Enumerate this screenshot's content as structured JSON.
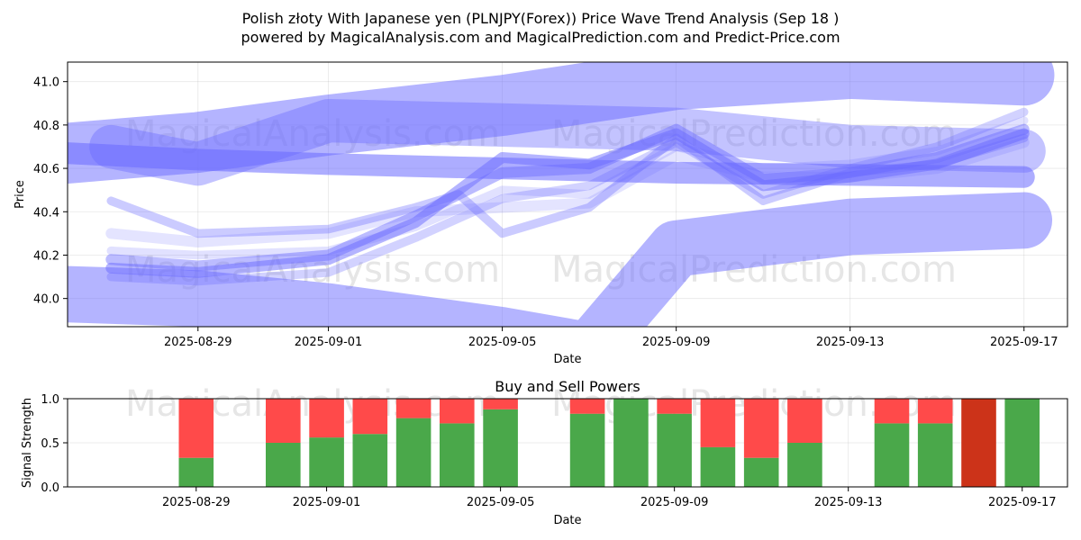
{
  "title_line1": "Polish złoty With Japanese yen (PLNJPY(Forex)) Price Wave Trend Analysis (Sep 18 )",
  "title_line2": "powered by MagicalAnalysis.com and MagicalPrediction.com and Predict-Price.com",
  "watermarks": {
    "left": "MagicalAnalysis.com",
    "right": "MagicalPrediction.com"
  },
  "colors": {
    "band": "#6a6aff",
    "buy": "#4aa84a",
    "sell": "#ff4a4a",
    "sell_dark": "#cc3319"
  },
  "chart_data": [
    {
      "type": "area",
      "title": "",
      "xlabel": "Date",
      "ylabel": "Price",
      "x_ticks": [
        "2025-08-29",
        "2025-09-01",
        "2025-09-05",
        "2025-09-09",
        "2025-09-13",
        "2025-09-17"
      ],
      "y_ticks": [
        "40.0",
        "40.2",
        "40.4",
        "40.6",
        "40.8",
        "41.0"
      ],
      "xlim": [
        "2025-08-26",
        "2025-09-18"
      ],
      "ylim": [
        39.87,
        41.09
      ],
      "grid": true,
      "series": [
        {
          "x": [
            "2025-08-26",
            "2025-08-29",
            "2025-09-01",
            "2025-09-05",
            "2025-09-09",
            "2025-09-13",
            "2025-09-17"
          ],
          "y": [
            40.67,
            40.64,
            40.62,
            40.6,
            40.58,
            40.57,
            40.56
          ],
          "width": 0.1,
          "opacity": 0.55
        },
        {
          "x": [
            "2025-08-26",
            "2025-08-29",
            "2025-09-01",
            "2025-09-05",
            "2025-09-09",
            "2025-09-13",
            "2025-09-17"
          ],
          "y": [
            40.67,
            40.72,
            40.8,
            40.89,
            41.01,
            41.06,
            41.03
          ],
          "width": 0.28,
          "opacity": 0.5
        },
        {
          "x": [
            "2025-08-26",
            "2025-08-29",
            "2025-09-01",
            "2025-09-05",
            "2025-09-07",
            "2025-09-09",
            "2025-09-13",
            "2025-09-17"
          ],
          "y": [
            40.02,
            40.0,
            39.94,
            39.83,
            39.76,
            40.23,
            40.33,
            40.36
          ],
          "width": 0.26,
          "opacity": 0.5
        },
        {
          "x": [
            "2025-08-27",
            "2025-08-29",
            "2025-09-01",
            "2025-09-05",
            "2025-09-09",
            "2025-09-13",
            "2025-09-17"
          ],
          "y": [
            40.7,
            40.62,
            40.82,
            40.8,
            40.78,
            40.7,
            40.68
          ],
          "width": 0.2,
          "opacity": 0.4
        },
        {
          "x": [
            "2025-08-27",
            "2025-08-29",
            "2025-09-01",
            "2025-09-03",
            "2025-09-05",
            "2025-09-07",
            "2025-09-09",
            "2025-09-11",
            "2025-09-13",
            "2025-09-15",
            "2025-09-17"
          ],
          "y": [
            40.14,
            40.12,
            40.18,
            40.35,
            40.65,
            40.62,
            40.76,
            40.52,
            40.56,
            40.62,
            40.76
          ],
          "width": 0.05,
          "opacity": 0.5
        },
        {
          "x": [
            "2025-08-27",
            "2025-08-29",
            "2025-09-01",
            "2025-09-03",
            "2025-09-05",
            "2025-09-07",
            "2025-09-09",
            "2025-09-11",
            "2025-09-13",
            "2025-09-15",
            "2025-09-17"
          ],
          "y": [
            40.18,
            40.15,
            40.2,
            40.38,
            40.58,
            40.6,
            40.78,
            40.55,
            40.58,
            40.65,
            40.78
          ],
          "width": 0.05,
          "opacity": 0.45
        },
        {
          "x": [
            "2025-08-27",
            "2025-08-29",
            "2025-09-01",
            "2025-09-03",
            "2025-09-04",
            "2025-09-05",
            "2025-09-07",
            "2025-09-09",
            "2025-09-11",
            "2025-09-13",
            "2025-09-15",
            "2025-09-17"
          ],
          "y": [
            40.45,
            40.3,
            40.32,
            40.42,
            40.48,
            40.3,
            40.42,
            40.74,
            40.45,
            40.58,
            40.62,
            40.74
          ],
          "width": 0.04,
          "opacity": 0.35
        },
        {
          "x": [
            "2025-08-27",
            "2025-08-29",
            "2025-09-01",
            "2025-09-03",
            "2025-09-05",
            "2025-09-07",
            "2025-09-09",
            "2025-09-11",
            "2025-09-13",
            "2025-09-15",
            "2025-09-17"
          ],
          "y": [
            40.1,
            40.08,
            40.12,
            40.28,
            40.46,
            40.52,
            40.72,
            40.48,
            40.6,
            40.7,
            40.86
          ],
          "width": 0.04,
          "opacity": 0.3
        },
        {
          "x": [
            "2025-08-27",
            "2025-08-29",
            "2025-09-01",
            "2025-09-03",
            "2025-09-05",
            "2025-09-07",
            "2025-09-09",
            "2025-09-11",
            "2025-09-13",
            "2025-09-15",
            "2025-09-17"
          ],
          "y": [
            40.3,
            40.26,
            40.3,
            40.4,
            40.42,
            40.44,
            40.66,
            40.56,
            40.56,
            40.6,
            40.72
          ],
          "width": 0.05,
          "opacity": 0.18
        },
        {
          "x": [
            "2025-08-27",
            "2025-08-29",
            "2025-09-01",
            "2025-09-03",
            "2025-09-05",
            "2025-09-07",
            "2025-09-09",
            "2025-09-11",
            "2025-09-13",
            "2025-09-15",
            "2025-09-17"
          ],
          "y": [
            40.22,
            40.2,
            40.22,
            40.33,
            40.5,
            40.48,
            40.7,
            40.6,
            40.62,
            40.68,
            40.82
          ],
          "width": 0.04,
          "opacity": 0.2
        }
      ]
    },
    {
      "type": "bar",
      "title": "Buy and Sell Powers",
      "xlabel": "Date",
      "ylabel": "Signal Strength",
      "x_ticks": [
        "2025-08-29",
        "2025-09-01",
        "2025-09-05",
        "2025-09-09",
        "2025-09-13",
        "2025-09-17"
      ],
      "y_ticks": [
        "0.0",
        "0.5",
        "1.0"
      ],
      "ylim": [
        0,
        1
      ],
      "categories": [
        "2025-08-29",
        "2025-08-31",
        "2025-09-01",
        "2025-09-02",
        "2025-09-03",
        "2025-09-04",
        "2025-09-05",
        "2025-09-07",
        "2025-09-08",
        "2025-09-09",
        "2025-09-10",
        "2025-09-11",
        "2025-09-12",
        "2025-09-14",
        "2025-09-15",
        "2025-09-16",
        "2025-09-17"
      ],
      "series": [
        {
          "name": "",
          "values": [
            0.33,
            0.5,
            0.56,
            0.6,
            0.78,
            0.72,
            0.88,
            0.83,
            1.0,
            0.83,
            0.45,
            0.33,
            0.5,
            0.72,
            0.72,
            0.0,
            1.0
          ]
        },
        {
          "name": "",
          "values": [
            0.67,
            0.5,
            0.44,
            0.4,
            0.22,
            0.28,
            0.12,
            0.17,
            0.0,
            0.17,
            0.55,
            0.67,
            0.5,
            0.28,
            0.28,
            1.0,
            0.0
          ]
        }
      ]
    }
  ]
}
